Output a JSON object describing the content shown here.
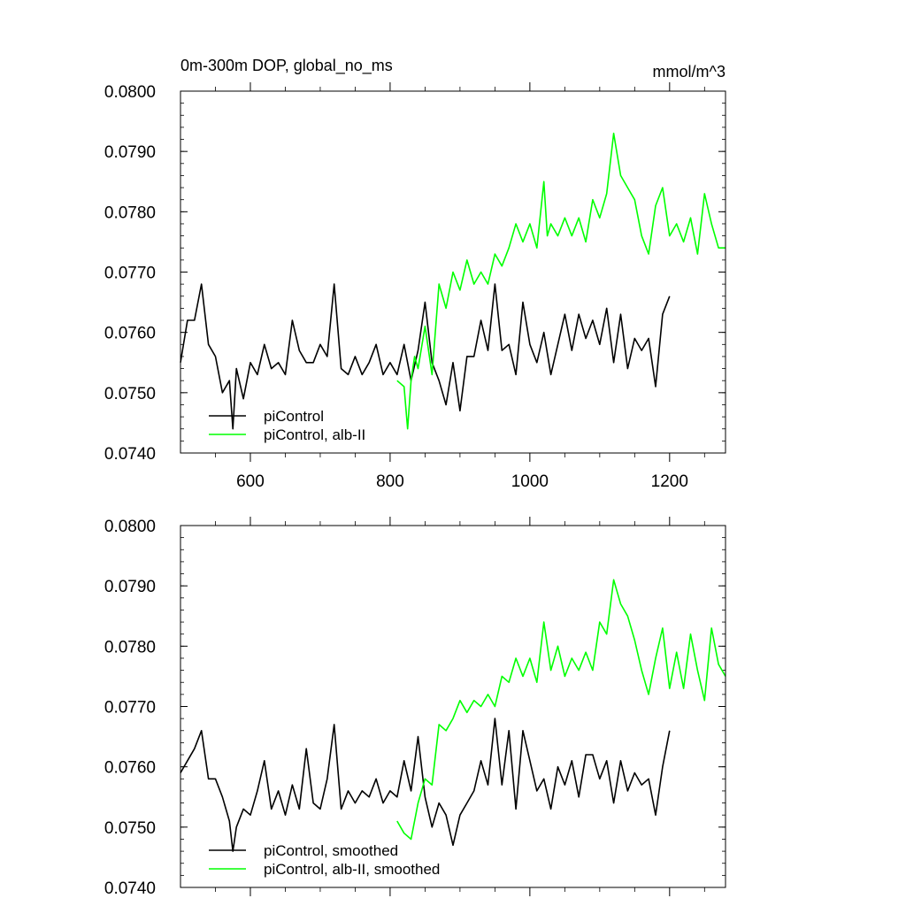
{
  "chart_data": [
    {
      "type": "line",
      "title": "0m-300m DOP, global_no_ms",
      "unit_label": "mmol/m^3",
      "xlim": [
        500,
        1280
      ],
      "ylim": [
        0.074,
        0.08
      ],
      "x_ticks": [
        600,
        800,
        1000,
        1200
      ],
      "x_tick_labels": [
        "600",
        "800",
        "1000",
        "1200"
      ],
      "y_ticks": [
        0.074,
        0.075,
        0.076,
        0.077,
        0.078,
        0.079,
        0.08
      ],
      "y_tick_labels": [
        "0.0740",
        "0.0750",
        "0.0760",
        "0.0770",
        "0.0780",
        "0.0790",
        "0.0800"
      ],
      "legend_position": "bottom-left",
      "grid": false,
      "series": [
        {
          "name": "piControl",
          "color": "#000000",
          "x": [
            500,
            510,
            520,
            530,
            540,
            550,
            560,
            570,
            575,
            580,
            590,
            600,
            610,
            620,
            630,
            640,
            650,
            660,
            670,
            680,
            690,
            700,
            710,
            720,
            730,
            740,
            750,
            760,
            770,
            780,
            790,
            800,
            810,
            820,
            830,
            840,
            850,
            860,
            870,
            880,
            890,
            900,
            910,
            920,
            930,
            940,
            950,
            960,
            970,
            980,
            990,
            1000,
            1010,
            1020,
            1030,
            1040,
            1050,
            1060,
            1070,
            1080,
            1090,
            1100,
            1110,
            1120,
            1130,
            1140,
            1150,
            1160,
            1170,
            1180,
            1190,
            1200
          ],
          "y": [
            0.0755,
            0.0762,
            0.0762,
            0.0768,
            0.0758,
            0.0756,
            0.075,
            0.0752,
            0.0744,
            0.0754,
            0.0749,
            0.0755,
            0.0753,
            0.0758,
            0.0754,
            0.0755,
            0.0753,
            0.0762,
            0.0757,
            0.0755,
            0.0755,
            0.0758,
            0.0756,
            0.0768,
            0.0754,
            0.0753,
            0.0756,
            0.0753,
            0.0755,
            0.0758,
            0.0753,
            0.0755,
            0.0753,
            0.0758,
            0.0752,
            0.0757,
            0.0765,
            0.0755,
            0.0752,
            0.0748,
            0.0755,
            0.0747,
            0.0756,
            0.0756,
            0.0762,
            0.0757,
            0.0768,
            0.0757,
            0.0758,
            0.0753,
            0.0765,
            0.0758,
            0.0755,
            0.076,
            0.0753,
            0.0758,
            0.0763,
            0.0757,
            0.0763,
            0.0759,
            0.0762,
            0.0758,
            0.0764,
            0.0755,
            0.0763,
            0.0754,
            0.0759,
            0.0757,
            0.0759,
            0.0751,
            0.0763,
            0.0766
          ]
        },
        {
          "name": "piControl, alb-II",
          "color": "#00ff00",
          "x": [
            810,
            820,
            825,
            830,
            835,
            840,
            850,
            860,
            870,
            880,
            890,
            900,
            910,
            920,
            930,
            940,
            950,
            960,
            970,
            980,
            990,
            1000,
            1010,
            1020,
            1025,
            1030,
            1040,
            1050,
            1060,
            1070,
            1080,
            1090,
            1100,
            1110,
            1120,
            1130,
            1140,
            1150,
            1160,
            1170,
            1180,
            1190,
            1200,
            1210,
            1220,
            1230,
            1240,
            1250,
            1260,
            1270,
            1280
          ],
          "y": [
            0.0752,
            0.0751,
            0.0744,
            0.0752,
            0.0756,
            0.0754,
            0.0761,
            0.0753,
            0.0768,
            0.0764,
            0.077,
            0.0767,
            0.0772,
            0.0768,
            0.077,
            0.0768,
            0.0773,
            0.0771,
            0.0774,
            0.0778,
            0.0775,
            0.0778,
            0.0774,
            0.0785,
            0.0776,
            0.0778,
            0.0776,
            0.0779,
            0.0776,
            0.0779,
            0.0775,
            0.0782,
            0.0779,
            0.0783,
            0.0793,
            0.0786,
            0.0784,
            0.0782,
            0.0776,
            0.0773,
            0.0781,
            0.0784,
            0.0776,
            0.0778,
            0.0775,
            0.0779,
            0.0773,
            0.0783,
            0.0778,
            0.0774,
            0.0774
          ]
        }
      ]
    },
    {
      "type": "line",
      "xlim": [
        500,
        1280
      ],
      "ylim": [
        0.074,
        0.08
      ],
      "x_ticks": [
        600,
        800,
        1000,
        1200
      ],
      "y_ticks": [
        0.074,
        0.075,
        0.076,
        0.077,
        0.078,
        0.079,
        0.08
      ],
      "y_tick_labels": [
        "0.0740",
        "0.0750",
        "0.0760",
        "0.0770",
        "0.0780",
        "0.0790",
        "0.0800"
      ],
      "legend_position": "bottom-left",
      "grid": false,
      "series": [
        {
          "name": "piControl, smoothed",
          "color": "#000000",
          "x": [
            500,
            510,
            520,
            530,
            540,
            550,
            560,
            570,
            575,
            580,
            590,
            600,
            610,
            620,
            630,
            640,
            650,
            660,
            670,
            680,
            690,
            700,
            710,
            720,
            730,
            740,
            750,
            760,
            770,
            780,
            790,
            800,
            810,
            820,
            830,
            840,
            850,
            860,
            870,
            880,
            890,
            900,
            910,
            920,
            930,
            940,
            950,
            960,
            970,
            980,
            990,
            1000,
            1010,
            1020,
            1030,
            1040,
            1050,
            1060,
            1070,
            1080,
            1090,
            1100,
            1110,
            1120,
            1130,
            1140,
            1150,
            1160,
            1170,
            1180,
            1190,
            1200
          ],
          "y": [
            0.0759,
            0.0761,
            0.0763,
            0.0766,
            0.0758,
            0.0758,
            0.0755,
            0.0751,
            0.0746,
            0.075,
            0.0753,
            0.0752,
            0.0756,
            0.0761,
            0.0753,
            0.0756,
            0.0752,
            0.0757,
            0.0753,
            0.0763,
            0.0754,
            0.0753,
            0.0758,
            0.0767,
            0.0753,
            0.0756,
            0.0754,
            0.0756,
            0.0755,
            0.0758,
            0.0754,
            0.0756,
            0.0755,
            0.0761,
            0.0756,
            0.0765,
            0.0755,
            0.075,
            0.0754,
            0.0752,
            0.0747,
            0.0752,
            0.0754,
            0.0756,
            0.0761,
            0.0757,
            0.0768,
            0.0757,
            0.0766,
            0.0753,
            0.0766,
            0.0761,
            0.0756,
            0.0758,
            0.0753,
            0.076,
            0.0757,
            0.0761,
            0.0755,
            0.0762,
            0.0762,
            0.0758,
            0.0761,
            0.0754,
            0.0761,
            0.0756,
            0.0759,
            0.0757,
            0.0758,
            0.0752,
            0.076,
            0.0766
          ]
        },
        {
          "name": "piControl, alb-II, smoothed",
          "color": "#00ff00",
          "x": [
            810,
            820,
            830,
            840,
            850,
            860,
            870,
            880,
            890,
            900,
            910,
            920,
            930,
            940,
            950,
            960,
            970,
            980,
            990,
            1000,
            1010,
            1020,
            1030,
            1040,
            1050,
            1060,
            1070,
            1080,
            1090,
            1100,
            1110,
            1120,
            1130,
            1140,
            1150,
            1160,
            1170,
            1180,
            1190,
            1200,
            1210,
            1220,
            1230,
            1240,
            1250,
            1260,
            1270,
            1280
          ],
          "y": [
            0.0751,
            0.0749,
            0.0748,
            0.0754,
            0.0758,
            0.0757,
            0.0767,
            0.0766,
            0.0768,
            0.0771,
            0.0769,
            0.0771,
            0.077,
            0.0772,
            0.077,
            0.0775,
            0.0774,
            0.0778,
            0.0775,
            0.0778,
            0.0774,
            0.0784,
            0.0776,
            0.078,
            0.0775,
            0.0778,
            0.0776,
            0.0779,
            0.0776,
            0.0784,
            0.0782,
            0.0791,
            0.0787,
            0.0785,
            0.0781,
            0.0776,
            0.0772,
            0.0778,
            0.0783,
            0.0773,
            0.0779,
            0.0773,
            0.0782,
            0.0776,
            0.0771,
            0.0783,
            0.0777,
            0.0775
          ]
        }
      ]
    }
  ]
}
